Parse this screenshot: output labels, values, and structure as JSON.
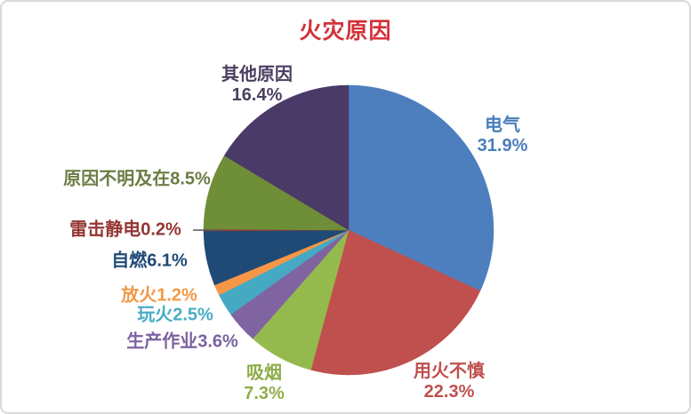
{
  "chart_data": {
    "type": "pie",
    "title": "火灾原因",
    "title_color": "#d23139",
    "start_angle_deg": 0,
    "direction": "clockwise",
    "legend_position": "none",
    "labels_on": "outside-colored-to-match-slices",
    "slices": [
      {
        "label": "电气",
        "value": 31.9,
        "pct_text": "31.9%",
        "color": "#4d7fbf",
        "label_color": "#4a7ebc"
      },
      {
        "label": "用火不慎",
        "value": 22.3,
        "pct_text": "22.3%",
        "color": "#c0504d",
        "label_color": "#bf504d"
      },
      {
        "label": "吸烟",
        "value": 7.3,
        "pct_text": "7.3%",
        "color": "#94ba4d",
        "label_color": "#8ead49"
      },
      {
        "label": "生产作业",
        "value": 3.6,
        "pct_text": "3.6%",
        "color": "#8064a2",
        "label_color": "#7a63a0"
      },
      {
        "label": "玩火",
        "value": 2.5,
        "pct_text": "2.5%",
        "color": "#45a9c4",
        "label_color": "#4aacc5"
      },
      {
        "label": "放火",
        "value": 1.2,
        "pct_text": "1.2%",
        "color": "#f79646",
        "label_color": "#f09a48"
      },
      {
        "label": "自燃",
        "value": 6.1,
        "pct_text": "6.1%",
        "color": "#1f4a76",
        "label_color": "#1f4a76"
      },
      {
        "label": "雷击静电",
        "value": 0.2,
        "pct_text": "0.2%",
        "color": "#943634",
        "label_color": "#943634"
      },
      {
        "label": "原因不明及在",
        "value": 8.5,
        "pct_text": "8.5%",
        "color": "#6f8e38",
        "label_color": "#6b7d44"
      },
      {
        "label": "其他原因",
        "value": 16.4,
        "pct_text": "16.4%",
        "color": "#4a3a68",
        "label_color": "#4a3f60"
      }
    ]
  }
}
